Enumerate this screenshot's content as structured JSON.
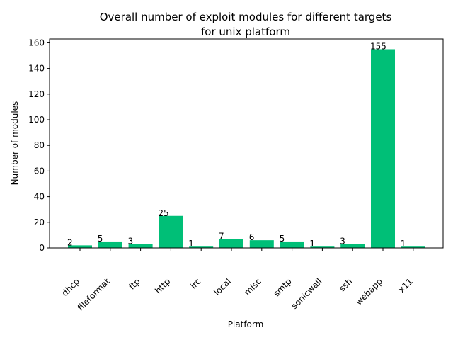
{
  "chart_data": {
    "type": "bar",
    "title": "Overall number of exploit modules for different targets",
    "subtitle": "for unix platform",
    "xlabel": "Platform",
    "ylabel": "Number of modules",
    "categories": [
      "dhcp",
      "fileformat",
      "ftp",
      "http",
      "irc",
      "local",
      "misc",
      "smtp",
      "sonicwall",
      "ssh",
      "webapp",
      "x11"
    ],
    "values": [
      2,
      5,
      3,
      25,
      1,
      7,
      6,
      5,
      1,
      3,
      155,
      1
    ],
    "ylim": [
      0,
      163
    ],
    "yticks": [
      0,
      20,
      40,
      60,
      80,
      100,
      120,
      140,
      160
    ],
    "grid": false,
    "bar_color": "#00bf77"
  }
}
